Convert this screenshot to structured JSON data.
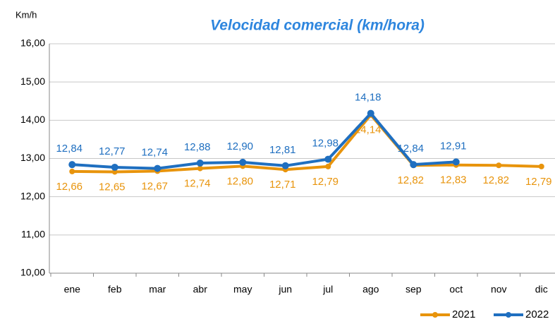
{
  "chart_data": {
    "type": "line",
    "title": "Velocidad comercial (km/hora)",
    "y_axis_label": "Km/h",
    "categories": [
      "ene",
      "feb",
      "mar",
      "abr",
      "may",
      "jun",
      "jul",
      "ago",
      "sep",
      "oct",
      "nov",
      "dic"
    ],
    "series": [
      {
        "name": "2021",
        "color": "#e8940c",
        "values": [
          12.66,
          12.65,
          12.67,
          12.74,
          12.8,
          12.71,
          12.79,
          14.14,
          12.82,
          12.83,
          12.82,
          12.79
        ],
        "value_labels": [
          "12,66",
          "12,65",
          "12,67",
          "12,74",
          "12,80",
          "12,71",
          "12,79",
          "14,14",
          "12,82",
          "12,83",
          "12,82",
          "12,79"
        ]
      },
      {
        "name": "2022",
        "color": "#1f6fc0",
        "values": [
          12.84,
          12.77,
          12.74,
          12.88,
          12.9,
          12.81,
          12.98,
          14.18,
          12.84,
          12.91,
          null,
          null
        ],
        "value_labels": [
          "12,84",
          "12,77",
          "12,74",
          "12,88",
          "12,90",
          "12,81",
          "12,98",
          "14,18",
          "12,84",
          "12,91",
          null,
          null
        ]
      }
    ],
    "ylim": [
      10,
      16
    ],
    "yticks": [
      {
        "value": 10,
        "label": "10,00"
      },
      {
        "value": 11,
        "label": "11,00"
      },
      {
        "value": 12,
        "label": "12,00"
      },
      {
        "value": 13,
        "label": "13,00"
      },
      {
        "value": 14,
        "label": "14,00"
      },
      {
        "value": 15,
        "label": "15,00"
      },
      {
        "value": 16,
        "label": "16,00"
      }
    ],
    "grid": true,
    "legend": "bottom-right"
  }
}
